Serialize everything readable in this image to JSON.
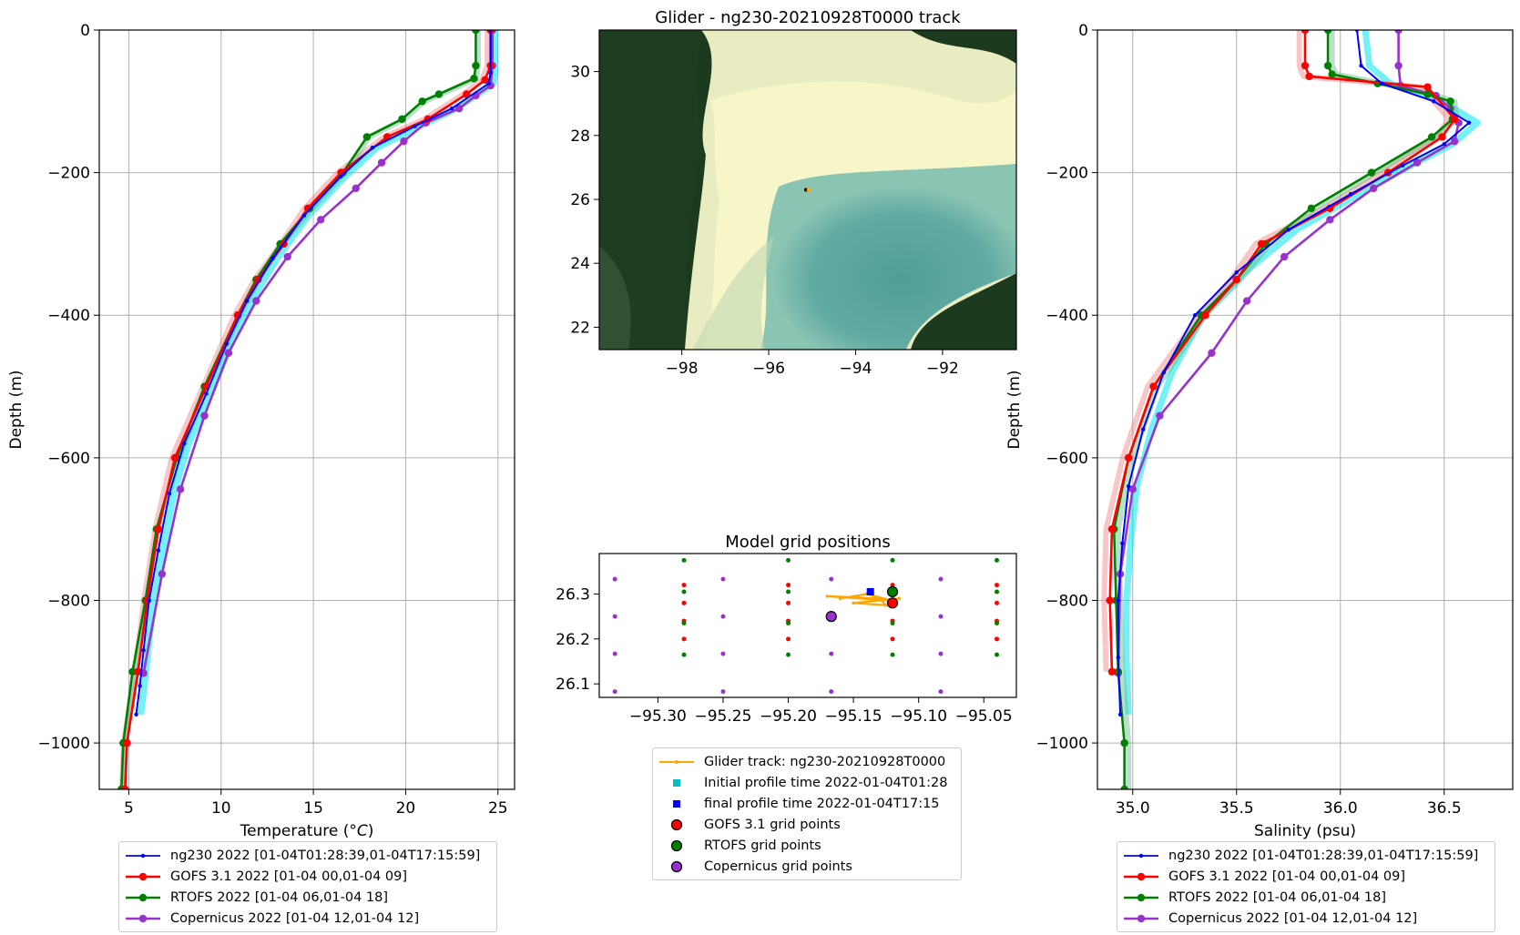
{
  "figure_title_map": "Glider - ng230-20210928T0000 track",
  "title_grid": "Model grid positions",
  "colors": {
    "glider": "#0000ff",
    "glider_scatter": "#00e5ee",
    "gofs": "#ff0000",
    "gofs_light": "#f08080",
    "rtofs": "#008000",
    "rtofs_light": "#66bb88",
    "copernicus": "#9932cc",
    "track": "#ffa500",
    "initial": "#00bfbf",
    "final": "#0000ff",
    "land": "#1f3a1f",
    "shelf": "#f5f5c8",
    "deep": "#5fa8a0"
  },
  "profile_legend": [
    {
      "label": "ng230 2022 [01-04T01:28:39,01-04T17:15:59]",
      "color": "#0000ff",
      "style": "thin"
    },
    {
      "label": "GOFS 3.1 2022 [01-04 00,01-04 09]",
      "color": "#ff0000",
      "style": "thick"
    },
    {
      "label": "RTOFS 2022 [01-04 06,01-04 18]",
      "color": "#008000",
      "style": "thick"
    },
    {
      "label": "Copernicus 2022 [01-04 12,01-04 12]",
      "color": "#9932cc",
      "style": "thick"
    }
  ],
  "grid_legend": [
    {
      "label": "Glider track: ng230-20210928T0000",
      "marker": "line",
      "color": "#ffa500"
    },
    {
      "label": "Initial profile time 2022-01-04T01:28",
      "marker": "square",
      "color": "#00bfbf"
    },
    {
      "label": "final profile time 2022-01-04T17:15",
      "marker": "square",
      "color": "#0000ff"
    },
    {
      "label": "GOFS 3.1 grid points",
      "marker": "circle",
      "color": "#ff0000"
    },
    {
      "label": "RTOFS grid points",
      "marker": "circle",
      "color": "#008000"
    },
    {
      "label": "Copernicus grid points",
      "marker": "circle",
      "color": "#9932cc"
    }
  ],
  "chart_data": [
    {
      "id": "temperature",
      "type": "line",
      "xlabel": "Temperature (°C)",
      "ylabel": "Depth (m)",
      "xlim": [
        3.4,
        25.9
      ],
      "ylim": [
        -1065,
        0
      ],
      "xticks": [
        5,
        10,
        15,
        20,
        25
      ],
      "yticks": [
        0,
        -200,
        -400,
        -600,
        -800,
        -1000
      ],
      "ytick_labels": [
        "0",
        "−200",
        "−400",
        "−600",
        "−800",
        "−1000"
      ],
      "grid": true,
      "series": [
        {
          "name": "ng230 2022 [01-04T01:28:39,01-04T17:15:59]",
          "color": "#0000ff",
          "x": [
            24.6,
            24.6,
            24.5,
            22.5,
            20.5,
            18.2,
            16.5,
            14.5,
            12.8,
            11.4,
            10.3,
            9.2,
            8.0,
            7.2,
            6.6,
            6.1,
            5.8,
            5.6,
            5.4
          ],
          "y": [
            0,
            -60,
            -75,
            -110,
            -135,
            -165,
            -205,
            -260,
            -320,
            -380,
            -440,
            -510,
            -580,
            -650,
            -730,
            -800,
            -870,
            -920,
            -960
          ]
        },
        {
          "name": "GOFS 3.1 2022 [01-04 00,01-04 09]",
          "color": "#ff0000",
          "x": [
            24.6,
            24.6,
            24.3,
            23.3,
            21.2,
            19.0,
            16.5,
            14.7,
            13.4,
            12.0,
            10.9,
            9.2,
            7.5,
            6.6,
            6.0,
            5.5,
            4.9,
            4.8
          ],
          "y": [
            0,
            -50,
            -70,
            -90,
            -125,
            -150,
            -200,
            -250,
            -300,
            -350,
            -400,
            -500,
            -600,
            -700,
            -800,
            -900,
            -1000,
            -1065
          ]
        },
        {
          "name": "RTOFS 2022 [01-04 06,01-04 18]",
          "color": "#008000",
          "x": [
            23.8,
            23.8,
            23.7,
            21.8,
            20.9,
            19.8,
            17.9,
            16.6,
            14.8,
            13.2,
            11.9,
            10.9,
            9.1,
            7.6,
            6.5,
            5.9,
            5.2,
            4.7,
            4.6
          ],
          "y": [
            0,
            -50,
            -68,
            -90,
            -100,
            -125,
            -150,
            -200,
            -250,
            -300,
            -350,
            -400,
            -500,
            -600,
            -700,
            -800,
            -900,
            -1000,
            -1065
          ]
        },
        {
          "name": "Copernicus 2022 [01-04 12,01-04 12]",
          "color": "#9932cc",
          "x": [
            24.7,
            24.7,
            24.6,
            23.8,
            22.9,
            21.1,
            19.9,
            18.7,
            17.3,
            15.4,
            13.6,
            11.9,
            10.4,
            9.1,
            7.8,
            6.8,
            5.8
          ],
          "y": [
            0,
            -50,
            -78,
            -92,
            -110,
            -130,
            -156,
            -186,
            -222,
            -266,
            -318,
            -380,
            -453,
            -541,
            -644,
            -763,
            -902
          ]
        }
      ]
    },
    {
      "id": "map",
      "type": "map",
      "title": "Glider - ng230-20210928T0000 track",
      "xlim": [
        -99.9,
        -90.3
      ],
      "ylim": [
        21.3,
        31.3
      ],
      "xticks": [
        -98,
        -96,
        -94,
        -92
      ],
      "xtick_labels": [
        "−98",
        "−96",
        "−94",
        "−92"
      ],
      "yticks": [
        22,
        24,
        26,
        28,
        30
      ],
      "glider_position": {
        "lon": -95.1,
        "lat": 26.3
      }
    },
    {
      "id": "grid",
      "type": "scatter",
      "title": "Model grid positions",
      "xlim": [
        -95.345,
        -95.025
      ],
      "ylim": [
        26.07,
        26.39
      ],
      "xticks": [
        -95.3,
        -95.25,
        -95.2,
        -95.15,
        -95.1,
        -95.05
      ],
      "xtick_labels": [
        "−95.30",
        "−95.25",
        "−95.20",
        "−95.15",
        "−95.10",
        "−95.05"
      ],
      "yticks": [
        26.1,
        26.2,
        26.3
      ],
      "yticks_labels": [
        "26.1",
        "26.2",
        "26.3"
      ],
      "gofs_lon": [
        -95.28,
        -95.2,
        -95.12,
        -95.04
      ],
      "gofs_lat": [
        26.32,
        26.28,
        26.24,
        26.2
      ],
      "rtofs_lon": [
        -95.28,
        -95.2,
        -95.12,
        -95.04
      ],
      "rtofs_lat": [
        26.375,
        26.305,
        26.235,
        26.165
      ],
      "copernicus_lon": [
        -95.333,
        -95.25,
        -95.167,
        -95.083
      ],
      "copernicus_lat": [
        26.333,
        26.25,
        26.167,
        26.083
      ],
      "track_lon": [
        -95.16,
        -95.14,
        -95.12,
        -95.17,
        -95.13,
        -95.125,
        -95.15,
        -95.115
      ],
      "track_lat": [
        26.29,
        26.3,
        26.285,
        26.295,
        26.29,
        26.275,
        26.28,
        26.29
      ],
      "initial_profile": {
        "lon": -95.12,
        "lat": 26.28
      },
      "final_profile": {
        "lon": -95.137,
        "lat": 26.305
      },
      "highlight_gofs": {
        "lon": -95.12,
        "lat": 26.28
      },
      "highlight_rtofs": {
        "lon": -95.12,
        "lat": 26.305
      },
      "highlight_copernicus": {
        "lon": -95.167,
        "lat": 26.25
      }
    },
    {
      "id": "salinity",
      "type": "line",
      "xlabel": "Salinity (psu)",
      "ylabel": "Depth (m)",
      "xlim": [
        34.83,
        36.83
      ],
      "ylim": [
        -1065,
        0
      ],
      "xticks": [
        35.0,
        35.5,
        36.0,
        36.5
      ],
      "xtick_labels": [
        "35.0",
        "35.5",
        "36.0",
        "36.5"
      ],
      "yticks": [
        0,
        -200,
        -400,
        -600,
        -800,
        -1000
      ],
      "ytick_labels": [
        "0",
        "−200",
        "−400",
        "−600",
        "−800",
        "−1000"
      ],
      "grid": true,
      "series": [
        {
          "name": "ng230 2022 [01-04T01:28:39,01-04T17:15:59]",
          "color": "#0000ff",
          "x": [
            36.08,
            36.1,
            36.2,
            36.45,
            36.62,
            36.5,
            36.3,
            36.05,
            35.75,
            35.5,
            35.3,
            35.15,
            35.05,
            34.98,
            34.95,
            34.93,
            34.93,
            34.94
          ],
          "y": [
            0,
            -50,
            -75,
            -100,
            -130,
            -160,
            -190,
            -230,
            -280,
            -340,
            -400,
            -480,
            -560,
            -640,
            -720,
            -800,
            -880,
            -960
          ]
        },
        {
          "name": "GOFS 3.1 2022 [01-04 00,01-04 09]",
          "color": "#ff0000",
          "x": [
            35.83,
            35.83,
            35.85,
            36.42,
            36.55,
            36.49,
            36.23,
            35.95,
            35.62,
            35.5,
            35.35,
            35.1,
            34.98,
            34.9,
            34.89,
            34.9
          ],
          "y": [
            0,
            -50,
            -65,
            -80,
            -125,
            -150,
            -200,
            -250,
            -300,
            -350,
            -400,
            -500,
            -600,
            -700,
            -800,
            -900
          ]
        },
        {
          "name": "RTOFS 2022 [01-04 06,01-04 18]",
          "color": "#008000",
          "x": [
            35.94,
            35.94,
            35.96,
            36.18,
            36.42,
            36.53,
            36.54,
            36.44,
            36.15,
            35.86,
            35.64,
            35.5,
            35.33,
            35.1,
            34.98,
            34.91,
            34.92,
            34.93,
            34.96,
            34.96
          ],
          "y": [
            0,
            -50,
            -62,
            -75,
            -90,
            -100,
            -125,
            -150,
            -200,
            -250,
            -300,
            -350,
            -400,
            -500,
            -600,
            -700,
            -800,
            -900,
            -1000,
            -1065
          ]
        },
        {
          "name": "Copernicus 2022 [01-04 12,01-04 12]",
          "color": "#9932cc",
          "x": [
            36.28,
            36.28,
            36.29,
            36.46,
            36.53,
            36.57,
            36.55,
            36.37,
            36.16,
            35.95,
            35.73,
            35.55,
            35.38,
            35.13,
            35.0,
            34.94,
            34.93
          ],
          "y": [
            0,
            -50,
            -78,
            -92,
            -110,
            -130,
            -156,
            -186,
            -222,
            -266,
            -318,
            -380,
            -453,
            -541,
            -644,
            -763,
            -902
          ]
        }
      ]
    }
  ]
}
